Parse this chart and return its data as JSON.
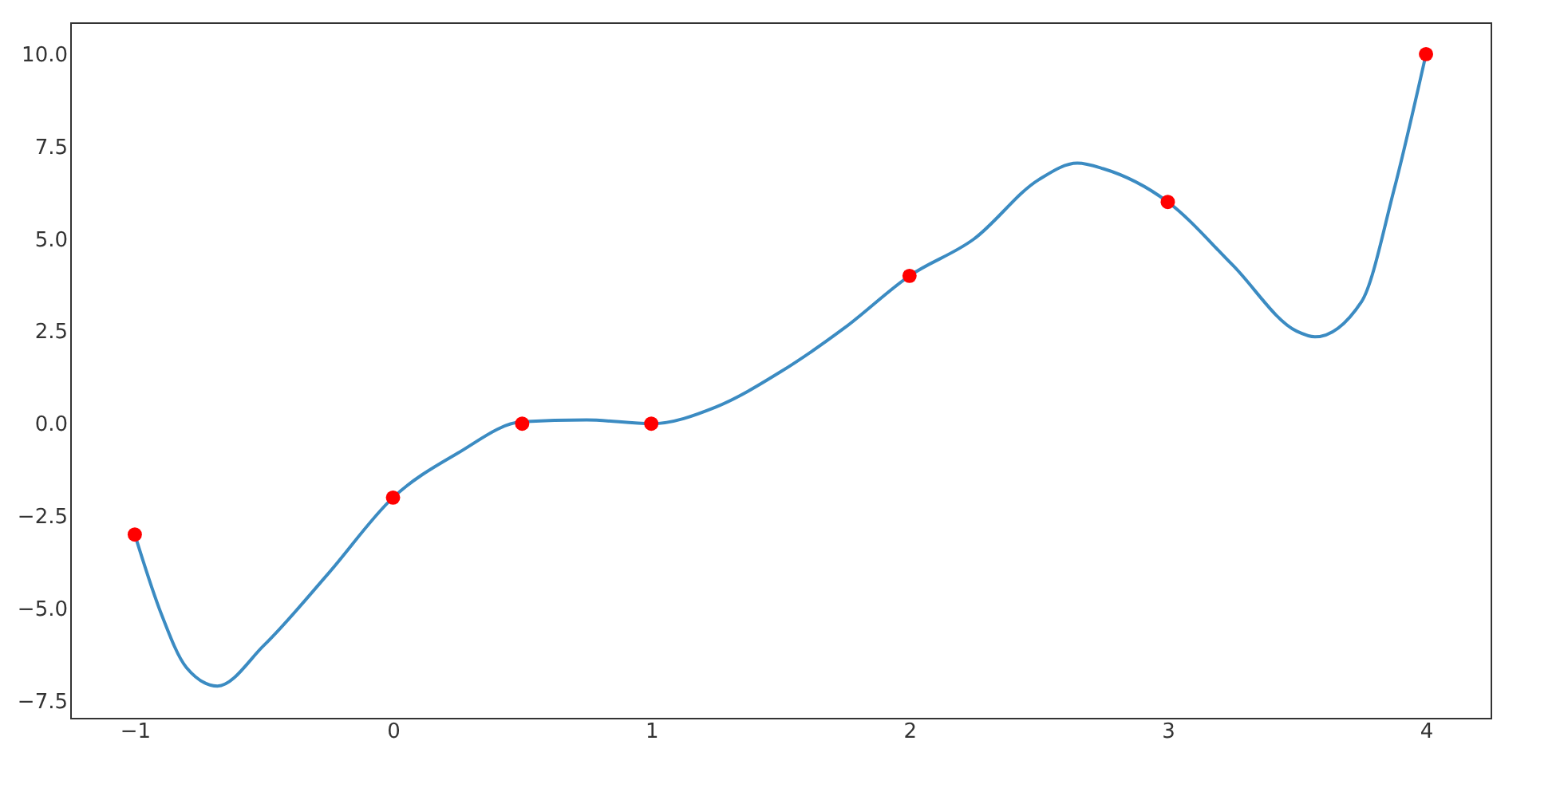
{
  "chart_data": {
    "type": "line",
    "xlim": [
      -1.25,
      4.25
    ],
    "ylim": [
      -7.96,
      10.86
    ],
    "xticks": [
      {
        "value": -1,
        "label": "−1"
      },
      0,
      1,
      2,
      3,
      4
    ],
    "yticks": [
      {
        "value": -7.5,
        "label": "−7.5"
      },
      {
        "value": -5,
        "label": "−5.0"
      },
      {
        "value": -2.5,
        "label": "−2.5"
      },
      {
        "value": 0,
        "label": "0.0"
      },
      {
        "value": 2.5,
        "label": "2.5"
      },
      {
        "value": 5,
        "label": "5.0"
      },
      {
        "value": 7.5,
        "label": "7.5"
      },
      {
        "value": 10,
        "label": "10.0"
      }
    ],
    "grid": false,
    "series": [
      {
        "color": "#3b8bc2",
        "x": [
          -1,
          -0.9,
          -0.8,
          -0.68,
          -0.5,
          -0.25,
          0,
          0.25,
          0.5,
          0.75,
          1,
          1.25,
          1.5,
          1.75,
          2,
          2.25,
          2.5,
          2.65,
          2.75,
          3,
          3.25,
          3.5,
          3.57,
          3.75,
          3.875,
          4
        ],
        "values": [
          -3,
          -5.1,
          -6.6,
          -7.1,
          -6.0,
          -4.05,
          -2,
          -0.8,
          0.05,
          0.1,
          0,
          0.45,
          1.4,
          2.6,
          4,
          5.0,
          6.6,
          7.05,
          6.9,
          6,
          4.3,
          2.5,
          2.35,
          3.3,
          6.3,
          10
        ]
      },
      {
        "type": "scatter",
        "color": "#ff0000",
        "marker": "circle",
        "x": [
          -1,
          0,
          0.5,
          1,
          2,
          3,
          4
        ],
        "values": [
          -3,
          -2,
          0,
          0,
          4,
          6,
          10
        ]
      }
    ]
  }
}
